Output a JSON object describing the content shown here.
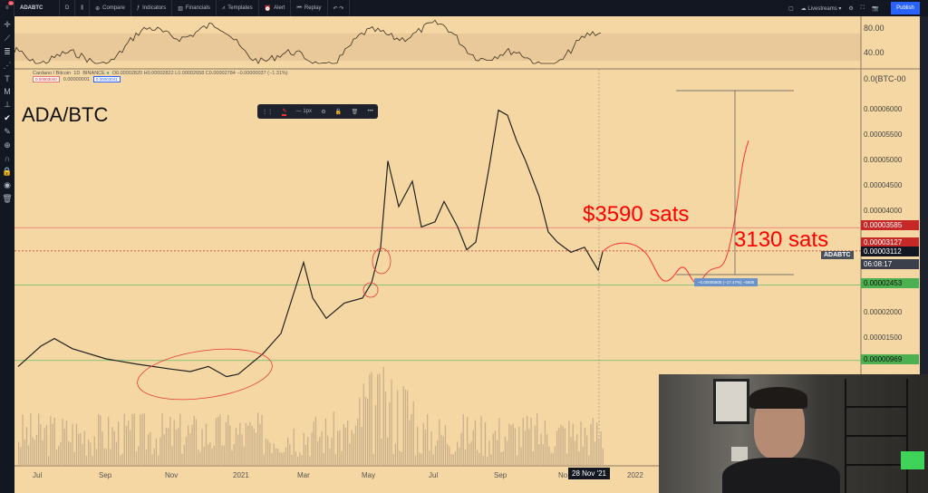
{
  "toolbar": {
    "symbol": "ADABTC",
    "interval": "D",
    "compare": "Compare",
    "indicators": "Indicators",
    "financials": "Financials",
    "templates": "Templates",
    "alert": "Alert",
    "replay": "Replay",
    "livestreams": "Livestreams",
    "publish": "Publish",
    "notifications": "10"
  },
  "legend": {
    "name": "Cardano / Bitcoin",
    "interval": "1D",
    "exchange": "BINANCE",
    "ohlc": "O0.00002820 H0.00002822 L0.00002658 C0.00002784 −0.00000037 (−1.31%)",
    "bid": "0.00003040",
    "spread": "0.00000001",
    "ask": "0.00003041"
  },
  "rsi": {
    "levels": [
      "80.00",
      "40.00"
    ]
  },
  "price_axis": {
    "currency": "0.0(BTC-00",
    "ticks": [
      "0.00006000",
      "0.00005500",
      "0.00005000",
      "0.00004500",
      "0.00004000",
      "0.00002000",
      "0.00001500"
    ],
    "tags": [
      {
        "value": "0.00003585",
        "color": "#c62828"
      },
      {
        "value": "0.00003127",
        "color": "#c62828"
      },
      {
        "value": "0.00003112",
        "color": "#131722"
      },
      {
        "value": "06:08:17",
        "color": "#3a3f4b"
      },
      {
        "value": "0.00002453",
        "color": "#4caf50"
      },
      {
        "value": "0.00000969",
        "color": "#4caf50"
      }
    ],
    "symbol_label": "ADABTC"
  },
  "time_axis": {
    "ticks": [
      "Jul",
      "Sep",
      "Nov",
      "2021",
      "Mar",
      "May",
      "Jul",
      "Sep",
      "No",
      "2022"
    ],
    "crosshair": "28 Nov '21"
  },
  "float_toolbar": {
    "width_label": "1px"
  },
  "measure": {
    "label": "−0.00000605 (−17.47%) −5605"
  },
  "annotations": {
    "title": "ADA/BTC",
    "target": "$3590 sats",
    "current": "3130 sats"
  },
  "colors": {
    "background": "#f5d7a4",
    "accent": "#2962ff",
    "annotation": "#ff0000"
  },
  "chart_data": {
    "type": "line",
    "symbol": "ADABTC",
    "unit": "sats",
    "x": [
      "2020-06",
      "2020-07",
      "2020-07",
      "2020-08",
      "2020-09",
      "2020-10",
      "2020-11",
      "2020-11",
      "2020-12",
      "2020-12",
      "2021-01",
      "2021-01",
      "2021-02",
      "2021-03",
      "2021-03",
      "2021-03",
      "2021-04",
      "2021-04",
      "2021-05",
      "2021-05",
      "2021-05",
      "2021-05",
      "2021-06",
      "2021-06",
      "2021-06",
      "2021-07",
      "2021-07",
      "2021-08",
      "2021-08",
      "2021-08",
      "2021-08",
      "2021-09",
      "2021-09",
      "2021-09",
      "2021-10",
      "2021-10",
      "2021-10",
      "2021-10",
      "2021-11",
      "2021-11",
      "2021-11",
      "2021-11"
    ],
    "values": [
      850,
      1250,
      1400,
      1200,
      1000,
      900,
      800,
      750,
      850,
      650,
      700,
      1100,
      1500,
      2900,
      2200,
      1800,
      2100,
      2200,
      2500,
      3200,
      4900,
      4000,
      4500,
      3600,
      3700,
      4100,
      3600,
      3150,
      3300,
      4800,
      5900,
      5800,
      5300,
      4900,
      4200,
      3500,
      3300,
      3100,
      3200,
      2750,
      3112,
      3112
    ],
    "horizontal_levels": [
      3585,
      3127,
      2453,
      969
    ]
  }
}
